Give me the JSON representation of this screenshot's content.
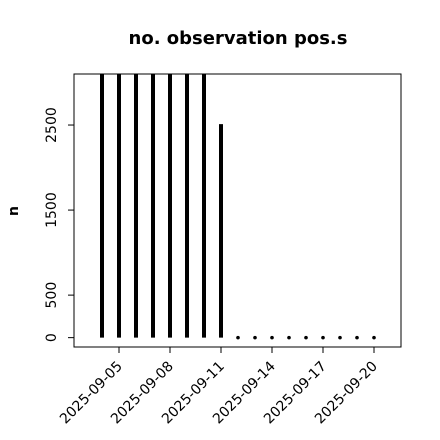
{
  "chart_data": {
    "type": "bar",
    "title": "no. observation pos.s",
    "y_label": "n",
    "x": [
      "2025-09-04",
      "2025-09-05",
      "2025-09-06",
      "2025-09-07",
      "2025-09-08",
      "2025-09-09",
      "2025-09-10",
      "2025-09-11",
      "2025-09-12",
      "2025-09-13",
      "2025-09-14",
      "2025-09-15",
      "2025-09-16",
      "2025-09-17",
      "2025-09-18",
      "2025-09-19",
      "2025-09-20"
    ],
    "values": [
      3100,
      3100,
      3100,
      3100,
      3100,
      3100,
      3100,
      2510,
      0,
      0,
      0,
      0,
      0,
      0,
      0,
      0,
      0
    ],
    "color": "#000000",
    "ylim": [
      -110,
      3100
    ],
    "yticks": [
      0,
      500,
      1500,
      2500
    ],
    "xticks": [
      "2025-09-05",
      "2025-09-08",
      "2025-09-11",
      "2025-09-14",
      "2025-09-17",
      "2025-09-20"
    ],
    "xtick_colors": [
      "#000000",
      "#000000",
      "#228b22",
      "#000000",
      "#000000",
      "#000000"
    ]
  }
}
